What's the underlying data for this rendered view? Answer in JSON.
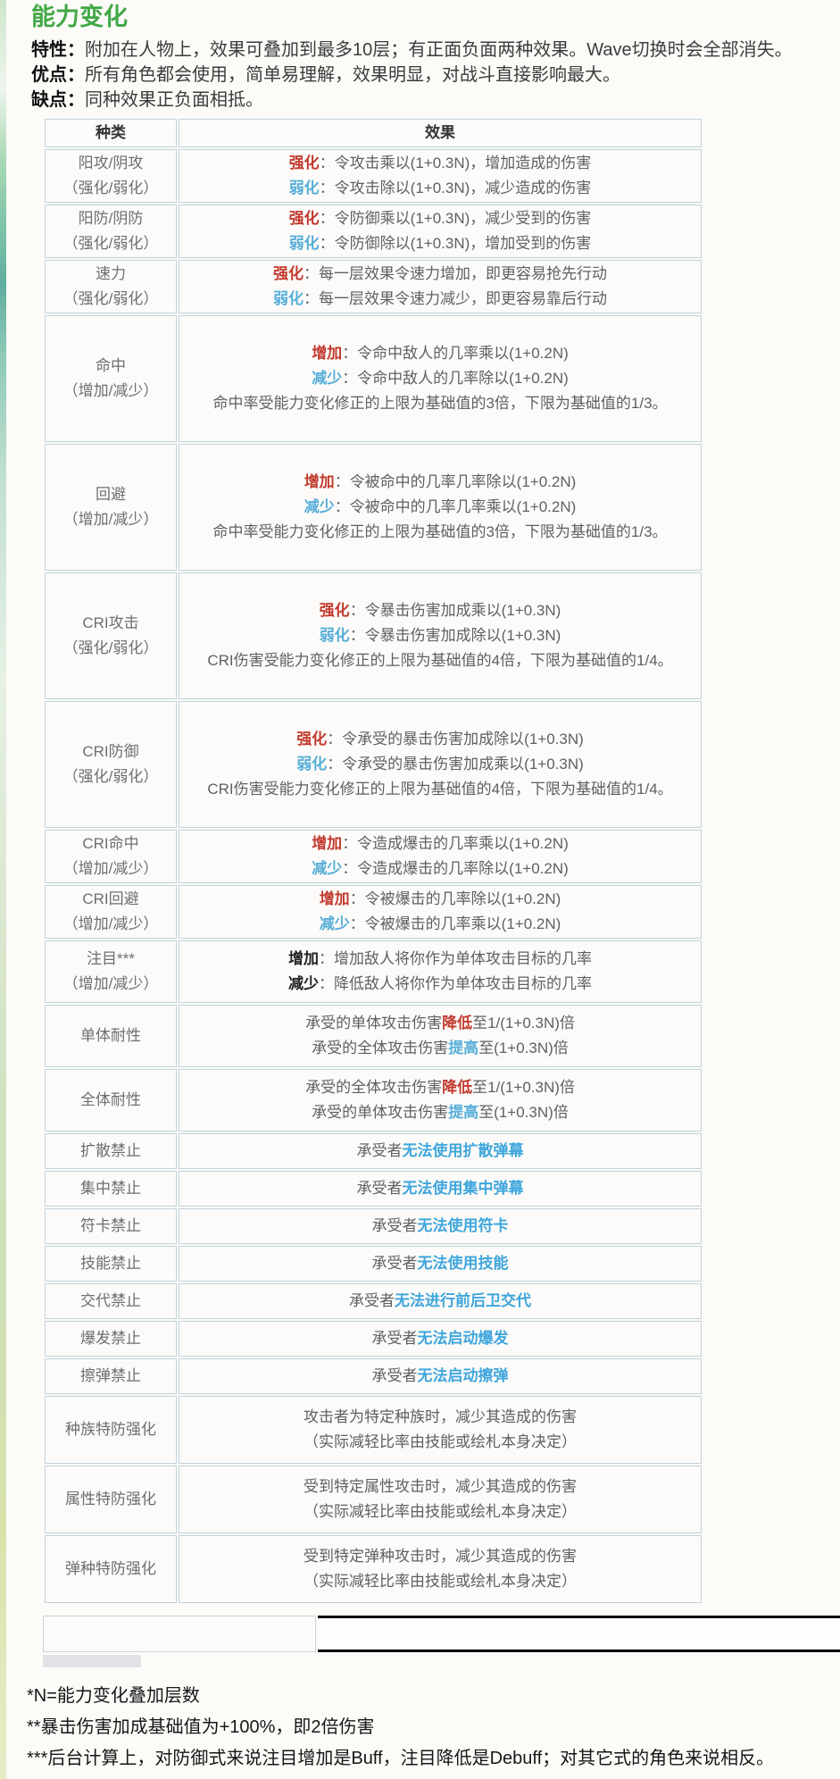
{
  "page": {
    "title": "能力变化",
    "intro": [
      {
        "label": "特性：",
        "text": "附加在人物上，效果可叠加到最多10层；有正面负面两种效果。Wave切换时会全部消失。"
      },
      {
        "label": "优点：",
        "text": "所有角色都会使用，简单易理解，效果明显，对战斗直接影响最大。"
      },
      {
        "label": "缺点：",
        "text": "同种效果正负面相抵。"
      }
    ]
  },
  "colors": {
    "title_green": "#42a847",
    "buff_red": "#c23a2e",
    "debuff_blue": "#57aed8",
    "forbid_blue": "#3fa6dc",
    "table_border": "#c0d2dc"
  },
  "table": {
    "headers": [
      "种类",
      "效果"
    ],
    "rows": [
      {
        "category": [
          "阳攻/阴攻",
          "（强化/弱化）"
        ],
        "effects": [
          [
            {
              "t": "强化",
              "s": "red"
            },
            {
              "t": "：令攻击乘以(1+0.3N)，增加造成的伤害",
              "s": "plain"
            }
          ],
          [
            {
              "t": "弱化",
              "s": "blue"
            },
            {
              "t": "：令攻击除以(1+0.3N)，减少造成的伤害",
              "s": "plain"
            }
          ]
        ]
      },
      {
        "category": [
          "阳防/阴防",
          "（强化/弱化）"
        ],
        "effects": [
          [
            {
              "t": "强化",
              "s": "red"
            },
            {
              "t": "：令防御乘以(1+0.3N)，减少受到的伤害",
              "s": "plain"
            }
          ],
          [
            {
              "t": "弱化",
              "s": "blue"
            },
            {
              "t": "：令防御除以(1+0.3N)，增加受到的伤害",
              "s": "plain"
            }
          ]
        ]
      },
      {
        "category": [
          "速力",
          "（强化/弱化）"
        ],
        "effects": [
          [
            {
              "t": "强化",
              "s": "red"
            },
            {
              "t": "：每一层效果令速力增加，即更容易抢先行动",
              "s": "plain"
            }
          ],
          [
            {
              "t": "弱化",
              "s": "blue"
            },
            {
              "t": "：每一层效果令速力减少，即更容易靠后行动",
              "s": "plain"
            }
          ]
        ]
      },
      {
        "category": [
          "命中",
          "（增加/减少）"
        ],
        "effects": [
          [
            {
              "t": "增加",
              "s": "red"
            },
            {
              "t": "：令命中敌人的几率乘以(1+0.2N)",
              "s": "plain"
            }
          ],
          [
            {
              "t": "减少",
              "s": "blue"
            },
            {
              "t": "：令命中敌人的几率除以(1+0.2N)",
              "s": "plain"
            }
          ],
          [
            {
              "t": "命中率受能力变化修正的上限为基础值的3倍，下限为基础值的1/3。",
              "s": "plain"
            }
          ]
        ]
      },
      {
        "category": [
          "回避",
          "（增加/减少）"
        ],
        "effects": [
          [
            {
              "t": "增加",
              "s": "red"
            },
            {
              "t": "：令被命中的几率几率除以(1+0.2N)",
              "s": "plain"
            }
          ],
          [
            {
              "t": "减少",
              "s": "blue"
            },
            {
              "t": "：令被命中的几率几率乘以(1+0.2N)",
              "s": "plain"
            }
          ],
          [
            {
              "t": "命中率受能力变化修正的上限为基础值的3倍，下限为基础值的1/3。",
              "s": "plain"
            }
          ]
        ]
      },
      {
        "category": [
          "CRI攻击",
          "（强化/弱化）"
        ],
        "effects": [
          [
            {
              "t": "强化",
              "s": "red"
            },
            {
              "t": "：令暴击伤害加成乘以(1+0.3N)",
              "s": "plain"
            }
          ],
          [
            {
              "t": "弱化",
              "s": "blue"
            },
            {
              "t": "：令暴击伤害加成除以(1+0.3N)",
              "s": "plain"
            }
          ],
          [
            {
              "t": "CRI伤害受能力变化修正的上限为基础值的4倍，下限为基础值的1/4。",
              "s": "plain"
            }
          ]
        ]
      },
      {
        "category": [
          "CRI防御",
          "（强化/弱化）"
        ],
        "effects": [
          [
            {
              "t": "强化",
              "s": "red"
            },
            {
              "t": "：令承受的暴击伤害加成除以(1+0.3N)",
              "s": "plain"
            }
          ],
          [
            {
              "t": "弱化",
              "s": "blue"
            },
            {
              "t": "：令承受的暴击伤害加成乘以(1+0.3N)",
              "s": "plain"
            }
          ],
          [
            {
              "t": "CRI伤害受能力变化修正的上限为基础值的4倍，下限为基础值的1/4。",
              "s": "plain"
            }
          ]
        ]
      },
      {
        "category": [
          "CRI命中",
          "（增加/减少）"
        ],
        "effects": [
          [
            {
              "t": "增加",
              "s": "red"
            },
            {
              "t": "：令造成爆击的几率乘以(1+0.2N)",
              "s": "plain"
            }
          ],
          [
            {
              "t": "减少",
              "s": "blue"
            },
            {
              "t": "：令造成爆击的几率除以(1+0.2N)",
              "s": "plain"
            }
          ]
        ]
      },
      {
        "category": [
          "CRI回避",
          "（增加/减少）"
        ],
        "effects": [
          [
            {
              "t": "增加",
              "s": "red"
            },
            {
              "t": "：令被爆击的几率除以(1+0.2N)",
              "s": "plain"
            }
          ],
          [
            {
              "t": "减少",
              "s": "blue"
            },
            {
              "t": "：令被爆击的几率乘以(1+0.2N)",
              "s": "plain"
            }
          ]
        ]
      },
      {
        "category": [
          "注目***",
          "（增加/减少）"
        ],
        "effects": [
          [
            {
              "t": "增加",
              "s": "bold"
            },
            {
              "t": "：增加敌人将你作为单体攻击目标的几率",
              "s": "plain"
            }
          ],
          [
            {
              "t": "减少",
              "s": "bold"
            },
            {
              "t": "：降低敌人将你作为单体攻击目标的几率",
              "s": "plain"
            }
          ]
        ]
      },
      {
        "category": [
          "单体耐性"
        ],
        "effects": [
          [
            {
              "t": "承受的单体攻击伤害",
              "s": "plain"
            },
            {
              "t": "降低",
              "s": "red"
            },
            {
              "t": "至1/(1+0.3N)倍",
              "s": "plain"
            }
          ],
          [
            {
              "t": "承受的全体攻击伤害",
              "s": "plain"
            },
            {
              "t": "提高",
              "s": "blue"
            },
            {
              "t": "至(1+0.3N)倍",
              "s": "plain"
            }
          ]
        ]
      },
      {
        "category": [
          "全体耐性"
        ],
        "effects": [
          [
            {
              "t": "承受的全体攻击伤害",
              "s": "plain"
            },
            {
              "t": "降低",
              "s": "red"
            },
            {
              "t": "至1/(1+0.3N)倍",
              "s": "plain"
            }
          ],
          [
            {
              "t": "承受的单体攻击伤害",
              "s": "plain"
            },
            {
              "t": "提高",
              "s": "blue"
            },
            {
              "t": "至(1+0.3N)倍",
              "s": "plain"
            }
          ]
        ]
      },
      {
        "category": [
          "扩散禁止"
        ],
        "effects": [
          [
            {
              "t": "承受者",
              "s": "plain"
            },
            {
              "t": "无法使用扩散弹幕",
              "s": "link"
            }
          ]
        ]
      },
      {
        "category": [
          "集中禁止"
        ],
        "effects": [
          [
            {
              "t": "承受者",
              "s": "plain"
            },
            {
              "t": "无法使用集中弹幕",
              "s": "link"
            }
          ]
        ]
      },
      {
        "category": [
          "符卡禁止"
        ],
        "effects": [
          [
            {
              "t": "承受者",
              "s": "plain"
            },
            {
              "t": "无法使用符卡",
              "s": "link"
            }
          ]
        ]
      },
      {
        "category": [
          "技能禁止"
        ],
        "effects": [
          [
            {
              "t": "承受者",
              "s": "plain"
            },
            {
              "t": "无法使用技能",
              "s": "link"
            }
          ]
        ]
      },
      {
        "category": [
          "交代禁止"
        ],
        "effects": [
          [
            {
              "t": "承受者",
              "s": "plain"
            },
            {
              "t": "无法进行前后卫交代",
              "s": "link"
            }
          ]
        ]
      },
      {
        "category": [
          "爆发禁止"
        ],
        "effects": [
          [
            {
              "t": "承受者",
              "s": "plain"
            },
            {
              "t": "无法启动爆发",
              "s": "link"
            }
          ]
        ]
      },
      {
        "category": [
          "擦弹禁止"
        ],
        "effects": [
          [
            {
              "t": "承受者",
              "s": "plain"
            },
            {
              "t": "无法启动擦弹",
              "s": "link"
            }
          ]
        ]
      },
      {
        "category": [
          "种族特防强化"
        ],
        "effects": [
          [
            {
              "t": "攻击者为特定种族时，减少其造成的伤害",
              "s": "plain"
            }
          ],
          [
            {
              "t": "（实际减轻比率由技能或绘札本身决定）",
              "s": "plain"
            }
          ]
        ]
      },
      {
        "category": [
          "属性特防强化"
        ],
        "effects": [
          [
            {
              "t": "受到特定属性攻击时，减少其造成的伤害",
              "s": "plain"
            }
          ],
          [
            {
              "t": "（实际减轻比率由技能或绘札本身决定）",
              "s": "plain"
            }
          ]
        ]
      },
      {
        "category": [
          "弹种特防强化"
        ],
        "effects": [
          [
            {
              "t": "受到特定弹种攻击时，减少其造成的伤害",
              "s": "plain"
            }
          ],
          [
            {
              "t": "（实际减轻比率由技能或绘札本身决定）",
              "s": "plain"
            }
          ]
        ]
      }
    ]
  },
  "footnotes": [
    "*N=能力变化叠加层数",
    "**暴击伤害加成基础值为+100%，即2倍伤害",
    "***后台计算上，对防御式来说注目增加是Buff，注目降低是Debuff；对其它式的角色来说相反。"
  ]
}
